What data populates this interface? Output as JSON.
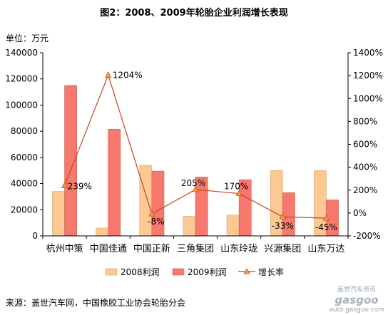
{
  "chart_data": {
    "type": "bar",
    "title": "图2：2008、2009年轮胎企业利润增长表现",
    "unit_label": "单位：万元",
    "categories": [
      "杭州中策",
      "中国佳通",
      "中国正新",
      "三角集团",
      "山东玲珑",
      "兴源集团",
      "山东万达"
    ],
    "series": [
      {
        "name": "2008利润",
        "type": "bar",
        "axis": "left",
        "color": "#fcc994",
        "values": [
          34000,
          6000,
          54000,
          15000,
          16000,
          50000,
          50000
        ]
      },
      {
        "name": "2009利润",
        "type": "bar",
        "axis": "left",
        "color": "#f7796d",
        "values": [
          115000,
          81500,
          49500,
          45000,
          43000,
          33000,
          27500
        ]
      },
      {
        "name": "增长率",
        "type": "line",
        "axis": "right",
        "color": "#c7431c",
        "marker": "triangle",
        "values": [
          239,
          1204,
          -8,
          205,
          170,
          -33,
          -45
        ]
      }
    ],
    "data_labels": [
      "239%",
      "1204%",
      "-8%",
      "205%",
      "170%",
      "-33%",
      "-45%"
    ],
    "y_left": {
      "min": 0,
      "max": 140000,
      "step": 20000,
      "ticks": [
        "0",
        "20000",
        "40000",
        "60000",
        "80000",
        "100000",
        "120000",
        "140000"
      ]
    },
    "y_right": {
      "min": -200,
      "max": 1400,
      "step": 200,
      "ticks": [
        "-200%",
        "0%",
        "200%",
        "400%",
        "600%",
        "800%",
        "1000%",
        "1200%",
        "1400%"
      ]
    },
    "grid": false,
    "legend_position": "bottom"
  },
  "source": "来源：盖世汽车网，中国橡胶工业协会轮胎分会",
  "watermark": {
    "cn": "盖世汽车资讯",
    "logo": "gasgoo",
    "url": "auto.gasgoo.com"
  }
}
